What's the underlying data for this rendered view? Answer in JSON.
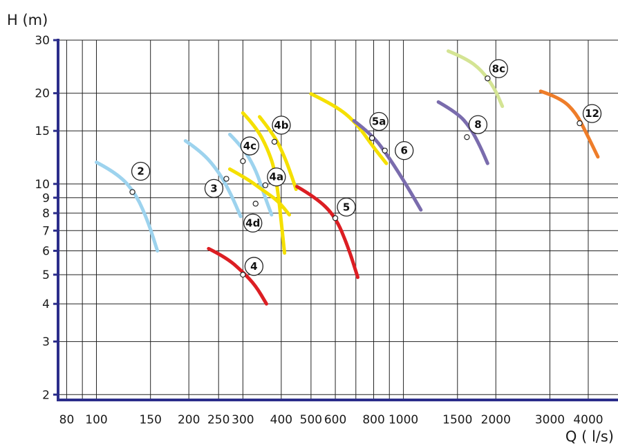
{
  "chart_data": {
    "type": "line",
    "ylabel": "H (m)",
    "xlabel": "Q ( l/s)",
    "x_scale": "log",
    "y_scale": "log",
    "xlim": [
      75,
      5000
    ],
    "ylim": [
      1.92,
      30
    ],
    "grid": true,
    "x_gridlines": [
      80,
      90,
      100,
      150,
      200,
      250,
      300,
      400,
      500,
      600,
      700,
      800,
      900,
      1000,
      1500,
      2000,
      3000,
      4000
    ],
    "x_ticks": [
      {
        "value": 80,
        "label": "80"
      },
      {
        "value": 100,
        "label": "100"
      },
      {
        "value": 150,
        "label": "150"
      },
      {
        "value": 200,
        "label": "200"
      },
      {
        "value": 250,
        "label": "250"
      },
      {
        "value": 300,
        "label": "300"
      },
      {
        "value": 400,
        "label": "400"
      },
      {
        "value": 500,
        "label": "500"
      },
      {
        "value": 600,
        "label": "600"
      },
      {
        "value": 800,
        "label": "800"
      },
      {
        "value": 1000,
        "label": "1000"
      },
      {
        "value": 1500,
        "label": "1500"
      },
      {
        "value": 2000,
        "label": "2000"
      },
      {
        "value": 3000,
        "label": "3000"
      },
      {
        "value": 4000,
        "label": "4000"
      }
    ],
    "y_ticks": [
      {
        "value": 2,
        "label": "2"
      },
      {
        "value": 3,
        "label": "3"
      },
      {
        "value": 4,
        "label": "4"
      },
      {
        "value": 5,
        "label": "5"
      },
      {
        "value": 6,
        "label": "6"
      },
      {
        "value": 7,
        "label": "7"
      },
      {
        "value": 8,
        "label": "8"
      },
      {
        "value": 9,
        "label": "9"
      },
      {
        "value": 10,
        "label": "10"
      },
      {
        "value": 15,
        "label": "15"
      },
      {
        "value": 20,
        "label": "20"
      },
      {
        "value": 30,
        "label": "30"
      }
    ],
    "series": [
      {
        "name": "2",
        "color": "#9dd3ee",
        "points": [
          [
            100,
            11.8
          ],
          [
            118,
            10.8
          ],
          [
            135,
            9.2
          ],
          [
            148,
            7.4
          ],
          [
            158,
            6.0
          ]
        ],
        "marker": [
          131,
          9.4
        ]
      },
      {
        "name": "3",
        "color": "#9dd3ee",
        "points": [
          [
            195,
            13.9
          ],
          [
            220,
            12.8
          ],
          [
            250,
            11.0
          ],
          [
            275,
            9.2
          ],
          [
            295,
            7.8
          ]
        ],
        "marker": [
          265,
          10.4
        ]
      },
      {
        "name": "4d",
        "color": "#9dd3ee",
        "points": [
          [
            272,
            14.6
          ],
          [
            300,
            13.2
          ],
          [
            330,
            11.2
          ],
          [
            352,
            9.2
          ],
          [
            372,
            7.9
          ]
        ],
        "marker": [
          330,
          8.6
        ]
      },
      {
        "name": "4c",
        "color": "#f5e000",
        "points": [
          [
            300,
            17.2
          ],
          [
            330,
            15.5
          ],
          [
            360,
            13.2
          ],
          [
            385,
            10.8
          ],
          [
            410,
            5.9
          ]
        ],
        "marker": [
          300,
          11.9
        ]
      },
      {
        "name": "4a",
        "color": "#f5e000",
        "points": [
          [
            272,
            11.2
          ],
          [
            310,
            10.4
          ],
          [
            350,
            9.5
          ],
          [
            390,
            8.8
          ],
          [
            425,
            7.9
          ]
        ],
        "marker": [
          355,
          9.9
        ]
      },
      {
        "name": "4b",
        "color": "#f5e000",
        "points": [
          [
            340,
            16.7
          ],
          [
            380,
            14.5
          ],
          [
            410,
            12.3
          ],
          [
            430,
            10.8
          ],
          [
            447,
            9.6
          ]
        ],
        "marker": [
          380,
          13.8
        ]
      },
      {
        "name": "4",
        "color": "#dc1e23",
        "points": [
          [
            232,
            6.1
          ],
          [
            265,
            5.7
          ],
          [
            300,
            5.1
          ],
          [
            330,
            4.6
          ],
          [
            358,
            4.0
          ]
        ],
        "marker": [
          300,
          5.0
        ]
      },
      {
        "name": "5",
        "color": "#dc1e23",
        "points": [
          [
            450,
            9.8
          ],
          [
            520,
            9.0
          ],
          [
            600,
            7.8
          ],
          [
            660,
            6.2
          ],
          [
            710,
            4.9
          ]
        ],
        "marker": [
          600,
          7.7
        ]
      },
      {
        "name": "5a",
        "color": "#f5e000",
        "points": [
          [
            500,
            19.9
          ],
          [
            600,
            18.2
          ],
          [
            700,
            16.0
          ],
          [
            800,
            13.2
          ],
          [
            880,
            11.7
          ]
        ],
        "marker": [
          790,
          14.2
        ]
      },
      {
        "name": "6",
        "color": "#7a6cad",
        "points": [
          [
            690,
            16.2
          ],
          [
            790,
            14.6
          ],
          [
            900,
            12.2
          ],
          [
            1030,
            9.8
          ],
          [
            1140,
            8.2
          ]
        ],
        "marker": [
          870,
          12.9
        ]
      },
      {
        "name": "8",
        "color": "#7a6cad",
        "points": [
          [
            1300,
            18.7
          ],
          [
            1500,
            17.2
          ],
          [
            1650,
            15.4
          ],
          [
            1780,
            13.3
          ],
          [
            1880,
            11.7
          ]
        ],
        "marker": [
          1610,
          14.3
        ]
      },
      {
        "name": "8c",
        "color": "#d4e494",
        "points": [
          [
            1400,
            27.6
          ],
          [
            1600,
            26.1
          ],
          [
            1800,
            23.8
          ],
          [
            1980,
            20.8
          ],
          [
            2100,
            18.1
          ]
        ],
        "marker": [
          1880,
          22.4
        ]
      },
      {
        "name": "12",
        "color": "#ee7d2a",
        "points": [
          [
            2800,
            20.3
          ],
          [
            3250,
            19.3
          ],
          [
            3650,
            17.2
          ],
          [
            3950,
            14.7
          ],
          [
            4300,
            12.3
          ]
        ],
        "marker": [
          3750,
          15.9
        ]
      }
    ],
    "callouts": [
      {
        "label": "2",
        "anchor": [
          131,
          9.4
        ]
      },
      {
        "label": "3",
        "anchor": [
          265,
          10.4
        ]
      },
      {
        "label": "4c",
        "anchor": [
          300,
          11.9
        ]
      },
      {
        "label": "4b",
        "anchor": [
          380,
          13.8
        ]
      },
      {
        "label": "4a",
        "anchor": [
          355,
          9.9
        ]
      },
      {
        "label": "4d",
        "anchor": [
          330,
          8.6
        ]
      },
      {
        "label": "4",
        "anchor": [
          300,
          5.0
        ]
      },
      {
        "label": "5",
        "anchor": [
          600,
          7.7
        ]
      },
      {
        "label": "5a",
        "anchor": [
          790,
          14.2
        ]
      },
      {
        "label": "6",
        "anchor": [
          870,
          12.9
        ]
      },
      {
        "label": "8",
        "anchor": [
          1610,
          14.3
        ]
      },
      {
        "label": "8c",
        "anchor": [
          1880,
          22.4
        ]
      },
      {
        "label": "12",
        "anchor": [
          3750,
          15.9
        ]
      }
    ]
  }
}
